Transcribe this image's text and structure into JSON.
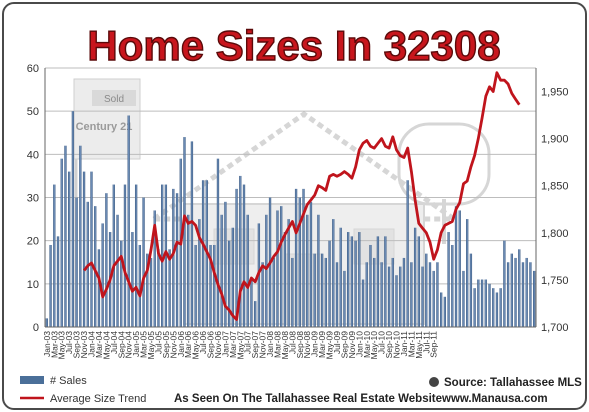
{
  "chart_data": {
    "type": "bar",
    "title": "Home Sizes In 32308",
    "y_left_range": [
      0,
      60
    ],
    "y_left_ticks": [
      "0",
      "10",
      "20",
      "30",
      "40",
      "50",
      "60"
    ],
    "y_right_range": [
      1700,
      1975
    ],
    "y_right_ticks": [
      "1,700",
      "1,750",
      "1,800",
      "1,850",
      "1,900",
      "1,950"
    ],
    "grid": true,
    "legend_position": "bottom-left",
    "x_tick_labels": [
      "Jan-03",
      "Mar-03",
      "May-03",
      "Jul-03",
      "Sep-03",
      "Nov-03",
      "Jan-04",
      "Mar-04",
      "May-04",
      "Jul-04",
      "Sep-04",
      "Nov-04",
      "Jan-05",
      "Mar-05",
      "May-05",
      "Jul-05",
      "Sep-05",
      "Nov-05",
      "Jan-06",
      "Mar-06",
      "May-06",
      "Jul-06",
      "Sep-06",
      "Nov-06",
      "Jan-07",
      "Mar-07",
      "May-07",
      "Jul-07",
      "Sep-07",
      "Nov-07",
      "Jan-08",
      "Mar-08",
      "May-08",
      "Jul-08",
      "Sep-08",
      "Nov-08",
      "Jan-09",
      "Mar-09",
      "May-09",
      "Jul-09",
      "Sep-09",
      "Nov-09",
      "Jan-10",
      "Mar-10",
      "May-10",
      "Jul-10",
      "Sep-10",
      "Nov-10",
      "Jan-11",
      "Mar-11",
      "May-11",
      "Jul-11",
      "Sep-11"
    ],
    "series": [
      {
        "name": "# Sales",
        "type": "bar",
        "axis": "left",
        "color": "#4b6f99",
        "values": [
          2,
          19,
          33,
          21,
          39,
          42,
          36,
          50,
          30,
          42,
          36,
          29,
          36,
          28,
          18,
          24,
          31,
          22,
          33,
          26,
          20,
          33,
          49,
          22,
          33,
          19,
          30,
          17,
          16,
          27,
          18,
          33,
          33,
          18,
          32,
          31,
          39,
          44,
          26,
          43,
          19,
          25,
          34,
          34,
          19,
          19,
          39,
          26,
          29,
          20,
          23,
          32,
          35,
          33,
          26,
          11,
          6,
          24,
          15,
          26,
          30,
          16,
          27,
          28,
          22,
          25,
          16,
          32,
          30,
          32,
          26,
          29,
          17,
          26,
          17,
          16,
          20,
          25,
          15,
          23,
          13,
          22,
          21,
          20,
          22,
          11,
          15,
          19,
          16,
          21,
          15,
          21,
          14,
          16,
          12,
          14,
          16,
          34,
          15,
          23,
          21,
          14,
          17,
          15,
          13,
          15,
          8,
          7,
          22,
          19,
          28,
          27,
          13,
          25,
          17,
          9,
          11,
          11,
          11,
          10,
          9,
          8,
          9,
          20,
          15,
          17,
          16,
          18,
          15,
          16,
          15,
          13
        ]
      },
      {
        "name": "Average Size Trend",
        "type": "line",
        "axis": "right",
        "color": "#c0141c",
        "start_index": 10,
        "values": [
          1760,
          1765,
          1768,
          1760,
          1752,
          1732,
          1740,
          1750,
          1765,
          1770,
          1775,
          1758,
          1748,
          1738,
          1742,
          1733,
          1752,
          1760,
          1782,
          1808,
          1778,
          1770,
          1780,
          1772,
          1778,
          1790,
          1788,
          1818,
          1810,
          1812,
          1808,
          1795,
          1788,
          1780,
          1772,
          1758,
          1745,
          1735,
          1722,
          1718,
          1712,
          1708,
          1738,
          1748,
          1742,
          1752,
          1748,
          1758,
          1765,
          1762,
          1768,
          1775,
          1780,
          1790,
          1798,
          1805,
          1812,
          1800,
          1810,
          1820,
          1830,
          1835,
          1840,
          1850,
          1848,
          1845,
          1860,
          1862,
          1860,
          1862,
          1865,
          1862,
          1858,
          1870,
          1888,
          1895,
          1898,
          1892,
          1890,
          1895,
          1900,
          1892,
          1890,
          1902,
          1888,
          1882,
          1880,
          1890,
          1865,
          1835,
          1810,
          1805,
          1800,
          1790,
          1772,
          1782,
          1800,
          1808,
          1810,
          1812,
          1825,
          1832,
          1852,
          1855,
          1870,
          1882,
          1900,
          1922,
          1945,
          1955,
          1950,
          1970,
          1962,
          1962,
          1958,
          1948,
          1942,
          1936
        ]
      }
    ],
    "annotations": {
      "source_label": "Source: Tallahassee MLS",
      "footer": "As Seen On The Tallahassee Real Estate Website",
      "website": "www.Manausa.com"
    },
    "watermark": {
      "sign_text": "Sold",
      "brand_text": "Century 21"
    }
  }
}
